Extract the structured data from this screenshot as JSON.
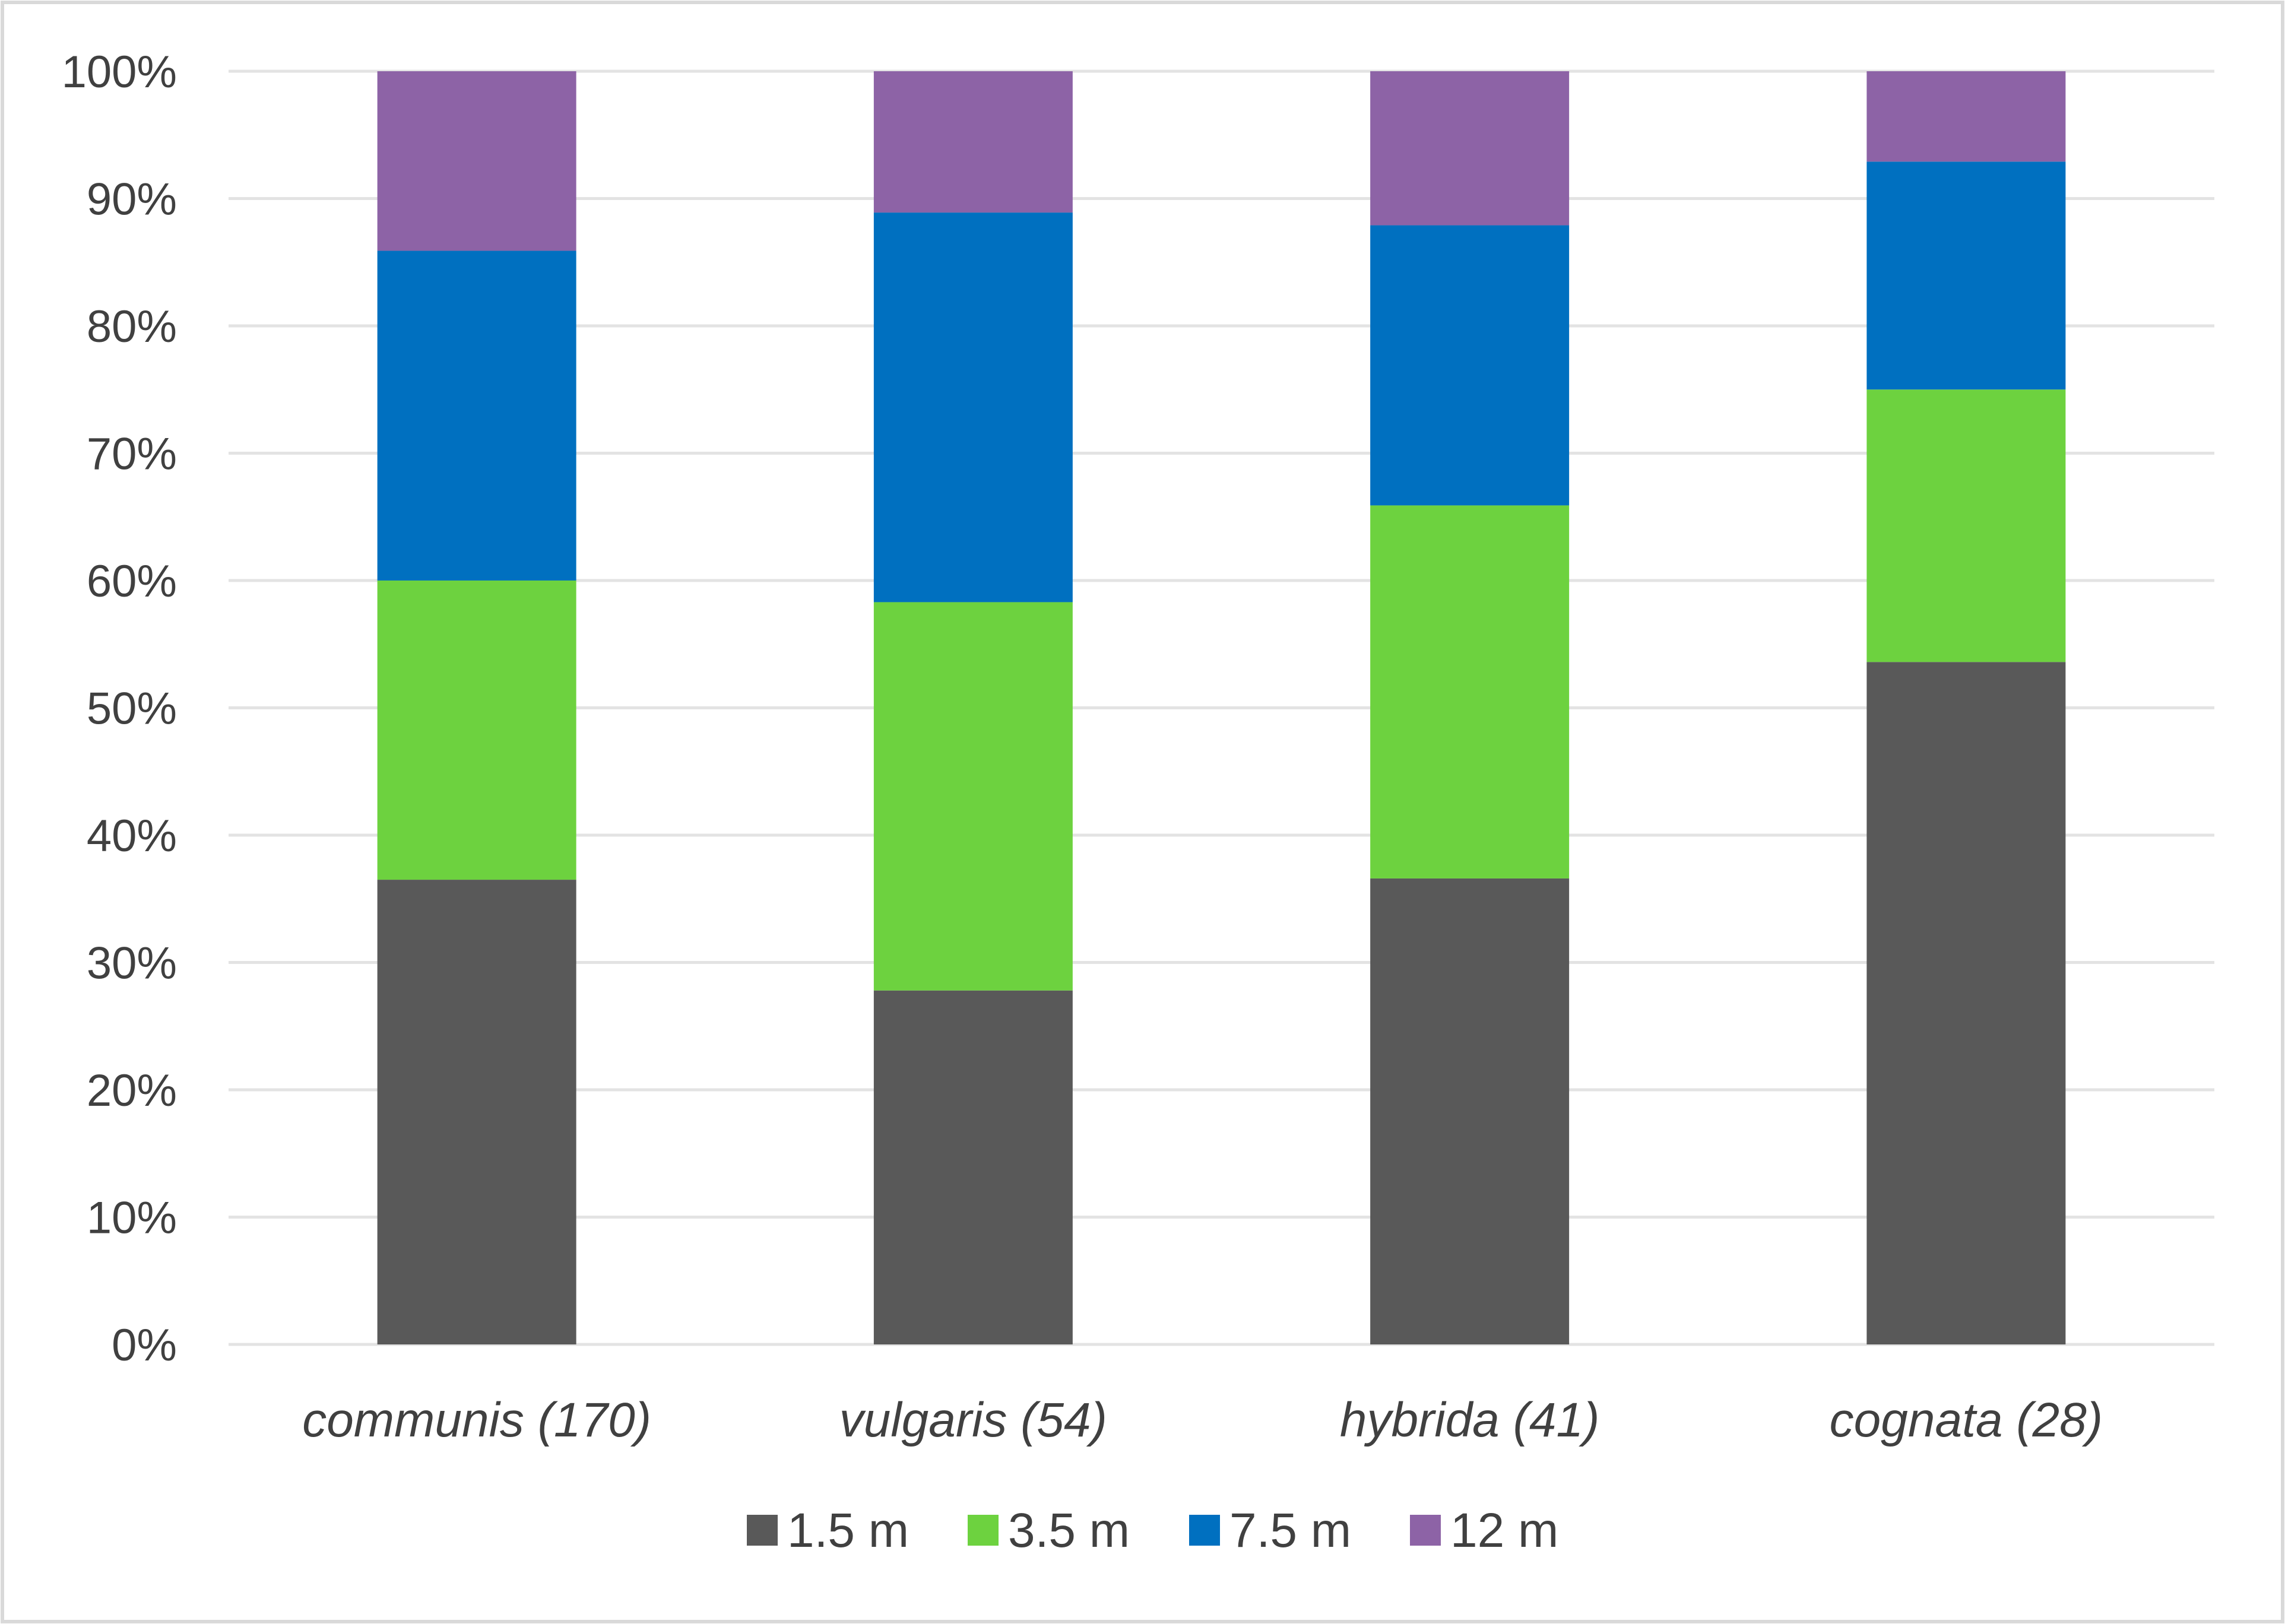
{
  "chart_data": {
    "type": "bar",
    "stacked": true,
    "percent": true,
    "title": "",
    "xlabel": "",
    "ylabel": "",
    "ylim": [
      0,
      100
    ],
    "yticks": [
      "0%",
      "10%",
      "20%",
      "30%",
      "40%",
      "50%",
      "60%",
      "70%",
      "80%",
      "90%",
      "100%"
    ],
    "categories": [
      "communis (170)",
      "vulgaris (54)",
      "hybrida (41)",
      "cognata (28)"
    ],
    "series": [
      {
        "name": "1.5 m",
        "color": "#595959",
        "values": [
          36.5,
          27.8,
          36.6,
          53.6
        ]
      },
      {
        "name": "3.5 m",
        "color": "#6dd23f",
        "values": [
          23.5,
          30.5,
          29.3,
          21.4
        ]
      },
      {
        "name": "7.5 m",
        "color": "#0070c0",
        "values": [
          25.9,
          30.6,
          22.0,
          17.9
        ]
      },
      {
        "name": "12 m",
        "color": "#8d63a6",
        "values": [
          14.1,
          11.1,
          12.1,
          7.1
        ]
      }
    ],
    "grid": true,
    "legend_position": "bottom-center"
  },
  "colors": {
    "background": "#ffffff",
    "frame": "#d9d9d9",
    "gridline": "#e3e3e3",
    "text": "#404040"
  }
}
